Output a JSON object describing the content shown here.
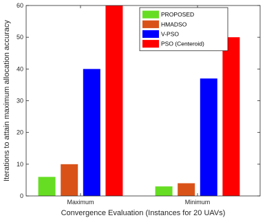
{
  "chart_data": {
    "type": "bar",
    "categories": [
      "Maximum",
      "Minimum"
    ],
    "series": [
      {
        "name": "PROPOSED",
        "color": "#66dd22",
        "values": [
          6,
          3
        ]
      },
      {
        "name": "HMADSO",
        "color": "#d95319",
        "values": [
          10,
          4
        ]
      },
      {
        "name": "V-PSO",
        "color": "#0000ff",
        "values": [
          40,
          37
        ]
      },
      {
        "name": "PSO (Centeroid)",
        "color": "#ff0000",
        "values": [
          60,
          50
        ]
      }
    ],
    "xlabel": "Convergence Evaluation (Instances for 20 UAVs)",
    "ylabel": "Iterations to attain maximum allocation accuracy",
    "ylim": [
      0,
      60
    ],
    "yticks": [
      0,
      10,
      20,
      30,
      40,
      50,
      60
    ],
    "legend_position": "top-right",
    "grid": false
  }
}
